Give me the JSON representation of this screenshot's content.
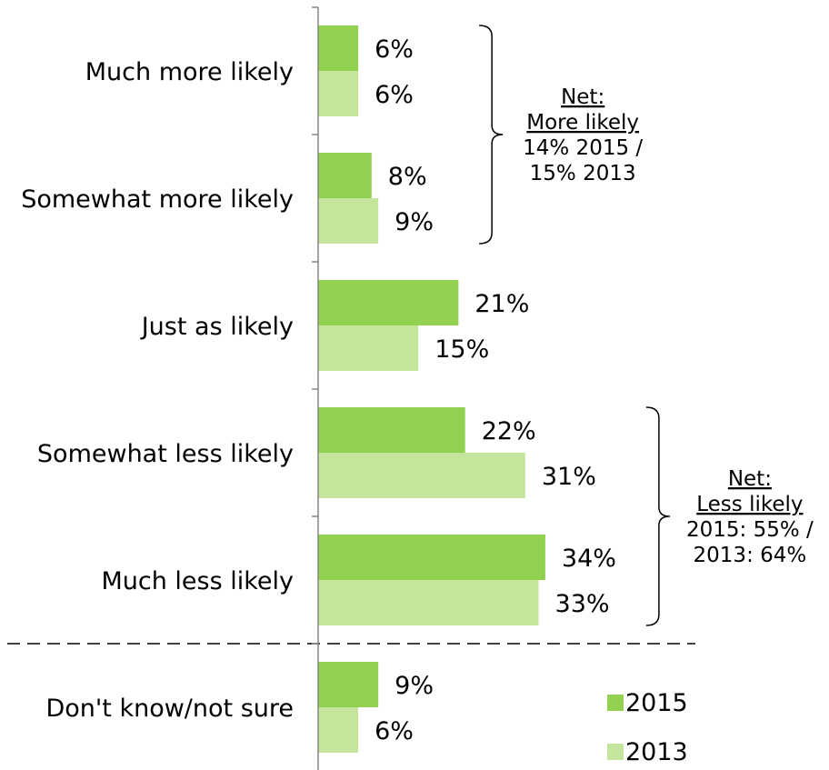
{
  "chart_data": {
    "type": "bar",
    "orientation": "horizontal",
    "categories": [
      "Much more likely",
      "Somewhat more likely",
      "Just as likely",
      "Somewhat less likely",
      "Much less likely",
      "Don't know/not sure"
    ],
    "series": [
      {
        "name": "2015",
        "color": "#92d050",
        "values": [
          6,
          8,
          21,
          22,
          34,
          9
        ],
        "labels": [
          "6%",
          "8%",
          "21%",
          "22%",
          "34%",
          "9%"
        ]
      },
      {
        "name": "2013",
        "color": "#c4e59b",
        "values": [
          6,
          9,
          15,
          31,
          33,
          6
        ],
        "labels": [
          "6%",
          "9%",
          "15%",
          "31%",
          "33%",
          "6%"
        ]
      }
    ],
    "title": "",
    "xlabel": "",
    "ylabel": "",
    "xlim": [
      0,
      40
    ],
    "grid": false,
    "legend_position": "bottom-right",
    "separator_after_category_index": 4,
    "annotations": [
      {
        "categories": [
          0,
          1
        ],
        "lines": [
          "Net:",
          "More likely",
          "14% 2015 /",
          "15% 2013"
        ],
        "underlined_lines": 2
      },
      {
        "categories": [
          3,
          4
        ],
        "lines": [
          "Net:",
          "Less likely",
          "2015: 55% /",
          "2013: 64%"
        ],
        "underlined_lines": 2
      }
    ]
  }
}
